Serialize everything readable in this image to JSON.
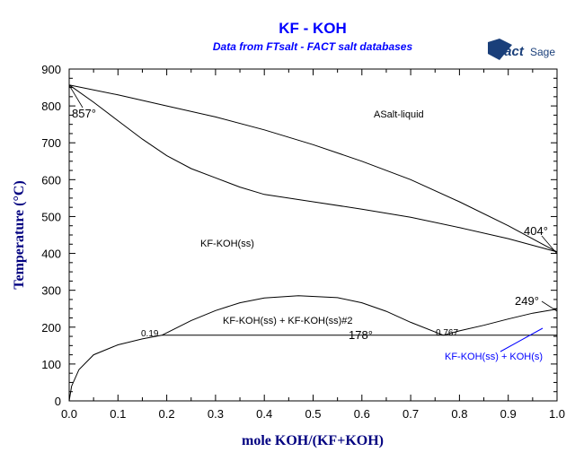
{
  "chart_data": {
    "type": "line",
    "title": "KF - KOH",
    "subtitle": "Data from FTsalt - FACT salt databases",
    "logo": "FactSage",
    "xlabel": "mole KOH/(KF+KOH)",
    "ylabel": "Temperature (°C)",
    "xlim": [
      0,
      1
    ],
    "ylim": [
      0,
      900
    ],
    "xticks": [
      "0.0",
      "0.1",
      "0.2",
      "0.3",
      "0.4",
      "0.5",
      "0.6",
      "0.7",
      "0.8",
      "0.9",
      "1.0"
    ],
    "yticks": [
      "0",
      "100",
      "200",
      "300",
      "400",
      "500",
      "600",
      "700",
      "800",
      "900"
    ],
    "grid": false,
    "colors": {
      "title": "#0000ff",
      "ylabel": "#000080",
      "logo": "#1a3f7a",
      "curves": "#000000",
      "blue_label": "#0000ff"
    },
    "series": [
      {
        "x": [
          0,
          0.1,
          0.2,
          0.3,
          0.4,
          0.5,
          0.6,
          0.7,
          0.8,
          0.9,
          1.0
        ],
        "y": [
          857,
          830,
          800,
          770,
          735,
          695,
          650,
          600,
          540,
          475,
          404
        ]
      },
      {
        "x": [
          0,
          0.05,
          0.1,
          0.15,
          0.2,
          0.25,
          0.3,
          0.35,
          0.4,
          0.5,
          0.6,
          0.7,
          0.8,
          0.9,
          1.0
        ],
        "y": [
          857,
          810,
          760,
          710,
          665,
          630,
          605,
          580,
          560,
          540,
          520,
          498,
          470,
          440,
          404
        ]
      },
      {
        "x": [
          0,
          0.005,
          0.02,
          0.05,
          0.1,
          0.15,
          0.19
        ],
        "y": [
          0,
          40,
          85,
          125,
          152,
          168,
          178
        ]
      },
      {
        "x": [
          0.19,
          0.25,
          0.3,
          0.35,
          0.4,
          0.47,
          0.55,
          0.6,
          0.65,
          0.7,
          0.767
        ],
        "y": [
          178,
          218,
          245,
          266,
          279,
          285,
          280,
          266,
          243,
          213,
          178
        ]
      },
      {
        "x": [
          0.767,
          0.8,
          0.85,
          0.9,
          0.95,
          1.0
        ],
        "y": [
          178,
          190,
          205,
          222,
          238,
          249
        ]
      },
      {
        "x": [
          0.19,
          1.0
        ],
        "y": [
          178,
          178
        ]
      }
    ],
    "annotations": [
      {
        "text": "857°"
      },
      {
        "text": "404°"
      },
      {
        "text": "249°"
      },
      {
        "text": "178°"
      },
      {
        "text": "0.19"
      },
      {
        "text": "0.767"
      },
      {
        "text": "ASalt-liquid"
      },
      {
        "text": "KF-KOH(ss)"
      },
      {
        "text": "KF-KOH(ss) + KF-KOH(ss)#2"
      },
      {
        "text": "KF-KOH(ss) + KOH(s)"
      }
    ]
  }
}
